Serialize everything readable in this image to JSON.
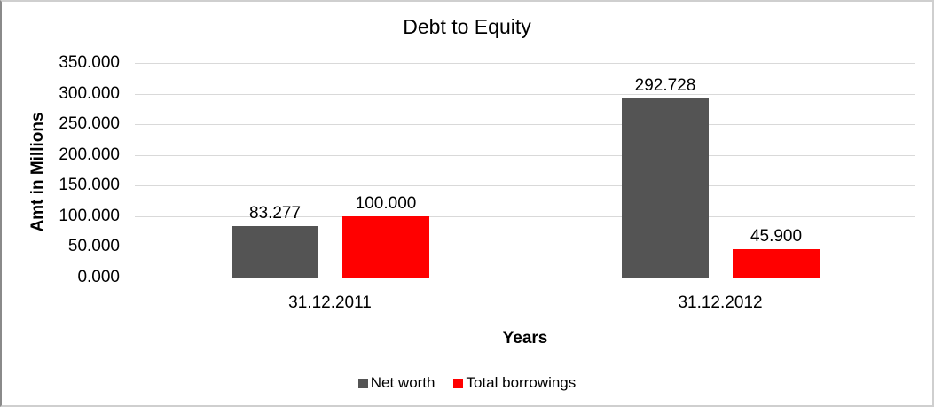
{
  "chart_data": {
    "type": "bar",
    "title": "Debt to Equity",
    "xlabel": "Years",
    "ylabel": "Amt in Millions",
    "categories": [
      "31.12.2011",
      "31.12.2012"
    ],
    "series": [
      {
        "name": "Net worth",
        "color": "#545454",
        "values": [
          83.277,
          292.728
        ],
        "labels": [
          "83.277",
          "292.728"
        ]
      },
      {
        "name": "Total borrowings",
        "color": "#ff0000",
        "values": [
          100.0,
          45.9
        ],
        "labels": [
          "100.000",
          "45.900"
        ]
      }
    ],
    "ylim": [
      0,
      350
    ],
    "ytick_step": 50,
    "ytick_labels": [
      "0.000",
      "50.000",
      "100.000",
      "150.000",
      "200.000",
      "250.000",
      "300.000",
      "350.000"
    ],
    "grid": true,
    "gridline_color": "#d9d9d9",
    "legend_position": "bottom",
    "frame_border_color": "#cfcfcf"
  }
}
